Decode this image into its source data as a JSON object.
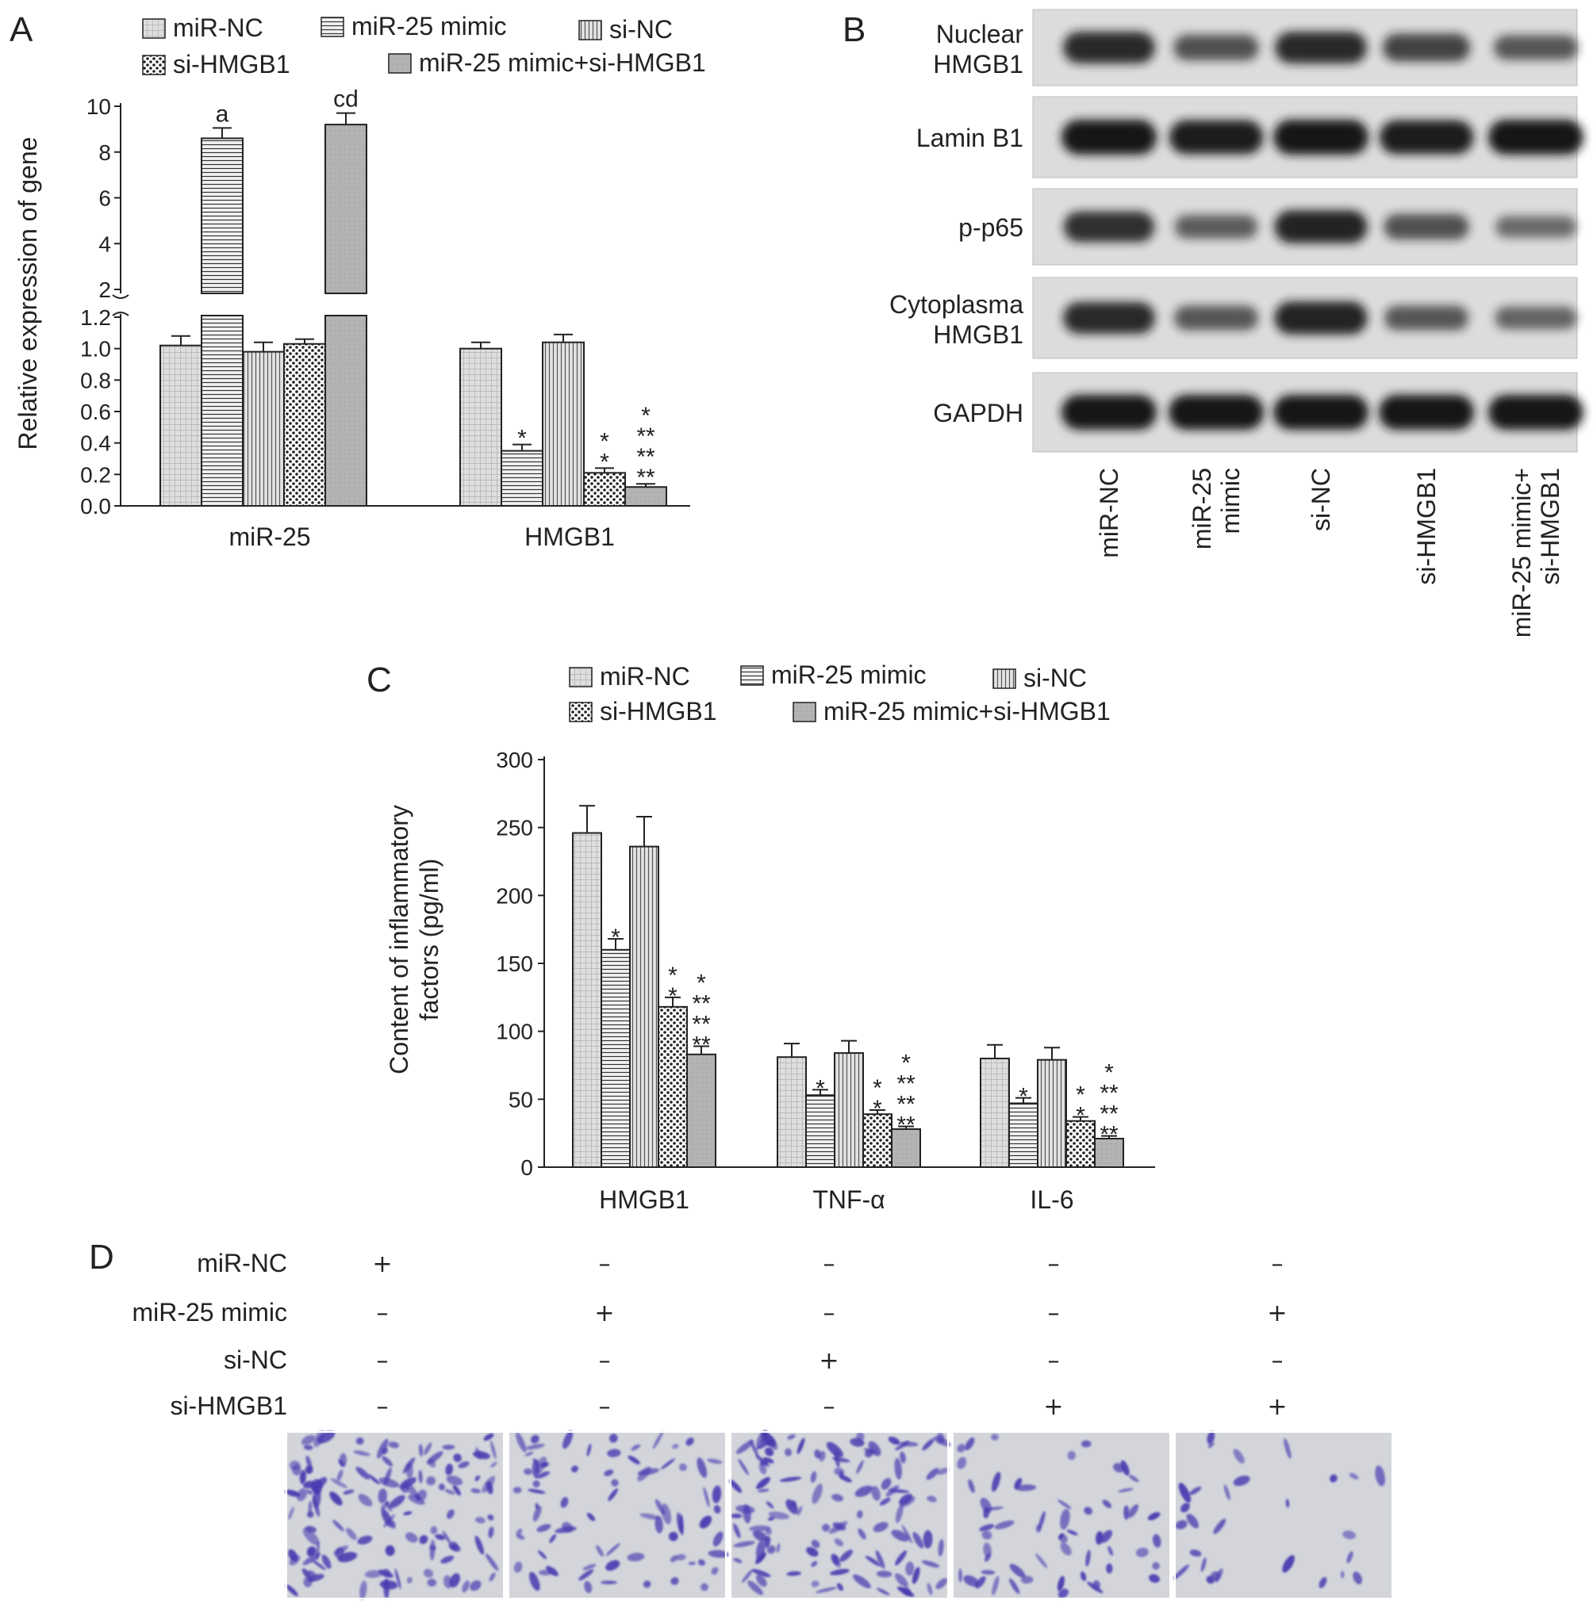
{
  "panel_letters": {
    "a": "A",
    "b": "B",
    "c": "C",
    "d": "D"
  },
  "legend": [
    "miR-NC",
    "miR-25 mimic",
    "si-NC",
    "si-HMGB1",
    "miR-25 mimic+si-HMGB1"
  ],
  "chart_data": [
    {
      "panel": "A",
      "type": "bar",
      "ylabel": "Relative expression of gene",
      "categories": [
        "miR-25",
        "HMGB1"
      ],
      "y_ticks_lower": [
        "0.0",
        "0.2",
        "0.4",
        "0.6",
        "0.8",
        "1.0",
        "1.2"
      ],
      "y_ticks_upper": [
        "2",
        "4",
        "6",
        "8",
        "10"
      ],
      "axis_break": [
        1.3,
        1.9
      ],
      "series": [
        {
          "name": "miR-NC",
          "values": [
            1.02,
            1.0
          ],
          "errors": [
            0.06,
            0.04
          ],
          "sig": [
            "",
            ""
          ]
        },
        {
          "name": "miR-25 mimic",
          "values": [
            8.6,
            0.35
          ],
          "errors": [
            0.45,
            0.04
          ],
          "sig": [
            "a",
            "*"
          ]
        },
        {
          "name": "si-NC",
          "values": [
            0.98,
            1.04
          ],
          "errors": [
            0.06,
            0.05
          ],
          "sig": [
            "",
            ""
          ]
        },
        {
          "name": "si-HMGB1",
          "values": [
            1.03,
            0.21
          ],
          "errors": [
            0.03,
            0.03
          ],
          "sig": [
            "",
            "*\n*"
          ]
        },
        {
          "name": "miR-25 mimic+si-HMGB1",
          "values": [
            9.2,
            0.12
          ],
          "errors": [
            0.5,
            0.02
          ],
          "sig": [
            "cd",
            "*\n**\n**\n**"
          ]
        }
      ]
    },
    {
      "panel": "C",
      "type": "bar",
      "ylabel": "Content of inflammatory\nfactors (pg/ml)",
      "categories": [
        "HMGB1",
        "TNF-α",
        "IL-6"
      ],
      "ylim": [
        0,
        300
      ],
      "y_ticks": [
        "0",
        "50",
        "100",
        "150",
        "200",
        "250",
        "300"
      ],
      "series": [
        {
          "name": "miR-NC",
          "values": [
            246,
            81,
            80
          ],
          "errors": [
            20,
            10,
            10
          ],
          "sig": [
            "",
            "",
            ""
          ]
        },
        {
          "name": "miR-25 mimic",
          "values": [
            160,
            53,
            47
          ],
          "errors": [
            8,
            4,
            4
          ],
          "sig": [
            "*",
            "*",
            "*"
          ]
        },
        {
          "name": "si-NC",
          "values": [
            236,
            84,
            79
          ],
          "errors": [
            22,
            9,
            9
          ],
          "sig": [
            "",
            "",
            ""
          ]
        },
        {
          "name": "si-HMGB1",
          "values": [
            118,
            39,
            34
          ],
          "errors": [
            7,
            3,
            3
          ],
          "sig": [
            "*\n*",
            "*\n*",
            "*\n*"
          ]
        },
        {
          "name": "miR-25 mimic+si-HMGB1",
          "values": [
            83,
            28,
            21
          ],
          "errors": [
            6,
            2,
            2
          ],
          "sig": [
            "*\n**\n**\n**",
            "*\n**\n**\n**",
            "*\n**\n**\n**"
          ]
        }
      ]
    }
  ],
  "panel_b": {
    "rows": [
      {
        "label": "Nuclear\nHMGB1",
        "intensities": [
          0.85,
          0.55,
          0.85,
          0.65,
          0.5
        ]
      },
      {
        "label": "Lamin B1",
        "intensities": [
          1.0,
          0.95,
          1.0,
          0.95,
          1.0
        ]
      },
      {
        "label": "p-p65",
        "intensities": [
          0.8,
          0.45,
          0.9,
          0.55,
          0.35
        ]
      },
      {
        "label": "Cytoplasma\nHMGB1",
        "intensities": [
          0.85,
          0.5,
          0.9,
          0.5,
          0.4
        ]
      },
      {
        "label": "GAPDH",
        "intensities": [
          1.0,
          1.0,
          1.0,
          1.0,
          1.0
        ]
      }
    ],
    "lanes": [
      "miR-NC",
      "miR-25\nmimic",
      "si-NC",
      "si-HMGB1",
      "miR-25 mimic+\nsi-HMGB1"
    ]
  },
  "panel_d": {
    "rows": [
      {
        "label": "miR-NC",
        "signs": [
          "+",
          "–",
          "–",
          "–",
          "–"
        ]
      },
      {
        "label": "miR-25 mimic",
        "signs": [
          "–",
          "+",
          "–",
          "–",
          "+"
        ]
      },
      {
        "label": "si-NC",
        "signs": [
          "–",
          "–",
          "+",
          "–",
          "–"
        ]
      },
      {
        "label": "si-HMGB1",
        "signs": [
          "–",
          "–",
          "–",
          "+",
          "+"
        ]
      }
    ],
    "image_density": [
      1.0,
      0.55,
      0.9,
      0.4,
      0.15
    ]
  },
  "colors": {
    "ink": "#222222",
    "bar_fill": [
      "#d9d9d9",
      "#e2e2e2",
      "#d4d4d4",
      "#ffffff",
      "#b5b5b5"
    ],
    "blot_bg": "#dcdcdc",
    "band": "#141414",
    "cell_bg": "#d3d5db",
    "cell": "#4a3ab0"
  }
}
